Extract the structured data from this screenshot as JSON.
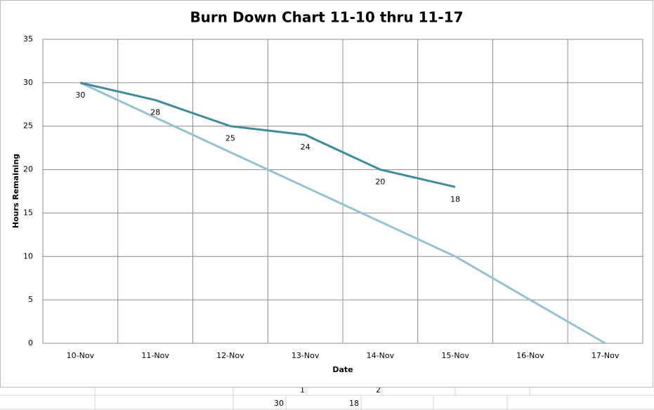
{
  "chart_data": {
    "type": "line",
    "title": "Burn Down Chart 11-10 thru 11-17",
    "x_label": "Date",
    "y_label": "Hours Remaining",
    "categories": [
      "10-Nov",
      "11-Nov",
      "12-Nov",
      "13-Nov",
      "14-Nov",
      "15-Nov",
      "16-Nov",
      "17-Nov"
    ],
    "series": [
      {
        "color": "#3b8d9e",
        "values": [
          30,
          28,
          25,
          24,
          20,
          18,
          null,
          null
        ],
        "data_labels": true
      },
      {
        "color": "#93c3d3",
        "values": [
          30,
          26,
          22,
          18,
          14,
          10,
          5,
          0
        ],
        "data_labels": false
      }
    ],
    "ylim": [
      0,
      35
    ],
    "yticks": [
      0,
      5,
      10,
      15,
      20,
      25,
      30,
      35
    ],
    "grid": true
  },
  "sheet": {
    "rows": [
      [
        "1",
        "2"
      ],
      [
        "30",
        "18"
      ]
    ]
  }
}
